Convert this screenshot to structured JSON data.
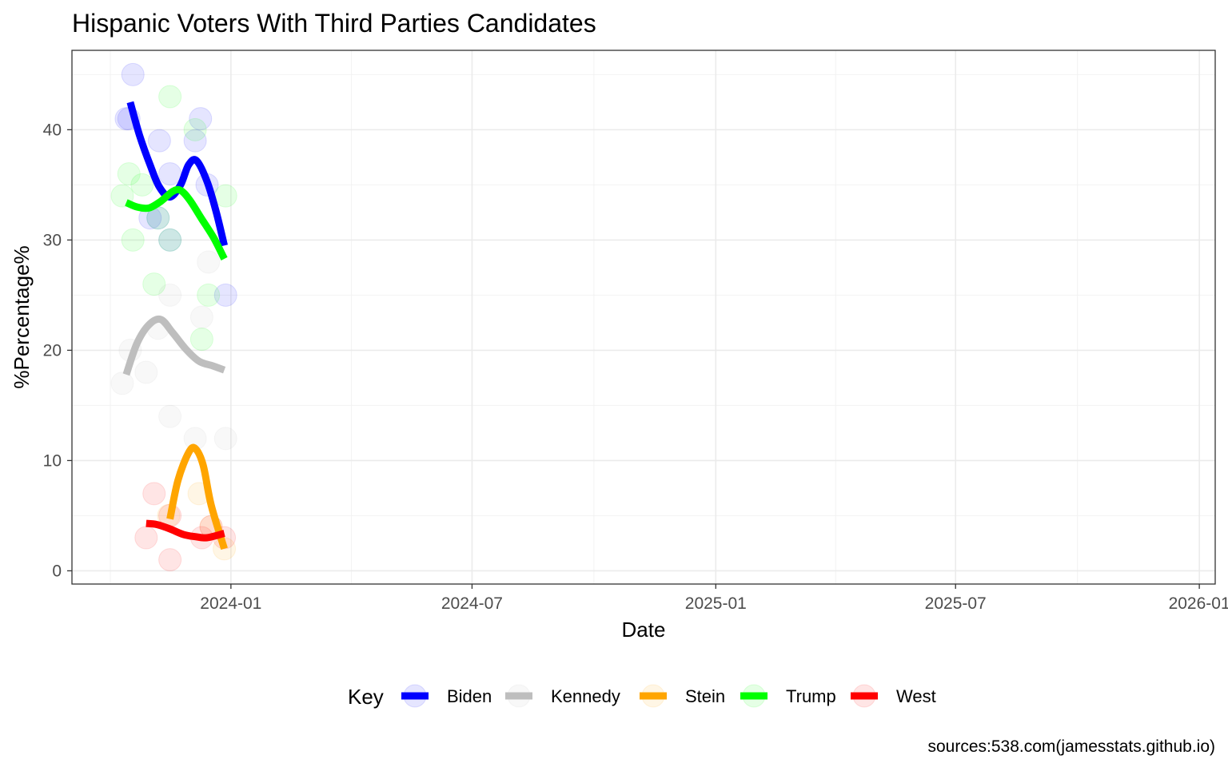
{
  "chart_data": {
    "type": "scatter",
    "title": "Hispanic Voters With Third Parties Candidates",
    "xlabel": "Date",
    "ylabel": "%Percentage%",
    "x_tick_labels": [
      "2024-01",
      "2024-07",
      "2025-01",
      "2025-07",
      "2026-01"
    ],
    "x_ticks": [
      "2024-01-01",
      "2024-07-01",
      "2025-01-01",
      "2025-07-01",
      "2026-01-01"
    ],
    "xlim": [
      "2023-09-03",
      "2026-01-13"
    ],
    "y_tick_labels": [
      "0",
      "10",
      "20",
      "30",
      "40"
    ],
    "y_ticks": [
      0,
      10,
      20,
      30,
      40
    ],
    "ylim": [
      -1.2,
      47.2
    ],
    "grid": true,
    "legend_title": "Key",
    "legend_position": "bottom",
    "caption": "sources:538.com(jamesstats.github.io)",
    "series": [
      {
        "name": "Biden",
        "color": "#0000ff",
        "points": [
          {
            "x": "2023-10-14",
            "y": 41
          },
          {
            "x": "2023-10-16",
            "y": 41
          },
          {
            "x": "2023-10-19",
            "y": 45
          },
          {
            "x": "2023-11-01",
            "y": 32
          },
          {
            "x": "2023-11-07",
            "y": 32
          },
          {
            "x": "2023-11-08",
            "y": 39
          },
          {
            "x": "2023-11-16",
            "y": 30
          },
          {
            "x": "2023-11-16",
            "y": 36
          },
          {
            "x": "2023-12-05",
            "y": 39
          },
          {
            "x": "2023-12-09",
            "y": 41
          },
          {
            "x": "2023-12-14",
            "y": 35
          },
          {
            "x": "2023-12-28",
            "y": 25
          }
        ],
        "trend": [
          {
            "x": "2023-10-17",
            "y": 42.5
          },
          {
            "x": "2023-10-24",
            "y": 39.5
          },
          {
            "x": "2023-11-01",
            "y": 36.8
          },
          {
            "x": "2023-11-08",
            "y": 34.8
          },
          {
            "x": "2023-11-16",
            "y": 33.9
          },
          {
            "x": "2023-11-24",
            "y": 35
          },
          {
            "x": "2023-11-30",
            "y": 36.8
          },
          {
            "x": "2023-12-06",
            "y": 37.2
          },
          {
            "x": "2023-12-14",
            "y": 35.3
          },
          {
            "x": "2023-12-21",
            "y": 32.5
          },
          {
            "x": "2023-12-27",
            "y": 29.5
          }
        ]
      },
      {
        "name": "Kennedy",
        "color": "#bebebe",
        "points": [
          {
            "x": "2023-10-11",
            "y": 17
          },
          {
            "x": "2023-10-17",
            "y": 20
          },
          {
            "x": "2023-10-29",
            "y": 18
          },
          {
            "x": "2023-11-07",
            "y": 22
          },
          {
            "x": "2023-11-16",
            "y": 14
          },
          {
            "x": "2023-11-16",
            "y": 25
          },
          {
            "x": "2023-12-05",
            "y": 12
          },
          {
            "x": "2023-12-10",
            "y": 23
          },
          {
            "x": "2023-12-15",
            "y": 28
          },
          {
            "x": "2023-12-28",
            "y": 12
          }
        ],
        "trend": [
          {
            "x": "2023-10-14",
            "y": 17.8
          },
          {
            "x": "2023-10-22",
            "y": 20.6
          },
          {
            "x": "2023-10-31",
            "y": 22.3
          },
          {
            "x": "2023-11-09",
            "y": 22.8
          },
          {
            "x": "2023-11-18",
            "y": 21.6
          },
          {
            "x": "2023-11-28",
            "y": 20.1
          },
          {
            "x": "2023-12-08",
            "y": 19
          },
          {
            "x": "2023-12-18",
            "y": 18.6
          },
          {
            "x": "2023-12-27",
            "y": 18.2
          }
        ]
      },
      {
        "name": "Stein",
        "color": "#ffa500",
        "points": [
          {
            "x": "2023-11-15",
            "y": 5
          },
          {
            "x": "2023-12-08",
            "y": 7
          },
          {
            "x": "2023-12-17",
            "y": 4
          },
          {
            "x": "2023-12-27",
            "y": 2
          }
        ],
        "trend": [
          {
            "x": "2023-11-16",
            "y": 4.7
          },
          {
            "x": "2023-11-22",
            "y": 8.2
          },
          {
            "x": "2023-11-30",
            "y": 10.7
          },
          {
            "x": "2023-12-05",
            "y": 11.1
          },
          {
            "x": "2023-12-11",
            "y": 9.6
          },
          {
            "x": "2023-12-17",
            "y": 6
          },
          {
            "x": "2023-12-27",
            "y": 2
          }
        ]
      },
      {
        "name": "Trump",
        "color": "#00ff00",
        "points": [
          {
            "x": "2023-10-11",
            "y": 34
          },
          {
            "x": "2023-10-16",
            "y": 36
          },
          {
            "x": "2023-10-19",
            "y": 30
          },
          {
            "x": "2023-10-26",
            "y": 35
          },
          {
            "x": "2023-11-04",
            "y": 26
          },
          {
            "x": "2023-11-07",
            "y": 32
          },
          {
            "x": "2023-11-16",
            "y": 43
          },
          {
            "x": "2023-11-16",
            "y": 30
          },
          {
            "x": "2023-12-05",
            "y": 40
          },
          {
            "x": "2023-12-10",
            "y": 21
          },
          {
            "x": "2023-12-15",
            "y": 25
          },
          {
            "x": "2023-12-28",
            "y": 34
          }
        ],
        "trend": [
          {
            "x": "2023-10-14",
            "y": 33.4
          },
          {
            "x": "2023-10-22",
            "y": 33
          },
          {
            "x": "2023-10-31",
            "y": 32.9
          },
          {
            "x": "2023-11-09",
            "y": 33.5
          },
          {
            "x": "2023-11-18",
            "y": 34.4
          },
          {
            "x": "2023-11-24",
            "y": 34.5
          },
          {
            "x": "2023-12-01",
            "y": 33.6
          },
          {
            "x": "2023-12-10",
            "y": 31.9
          },
          {
            "x": "2023-12-19",
            "y": 30.2
          },
          {
            "x": "2023-12-27",
            "y": 28.3
          }
        ]
      },
      {
        "name": "West",
        "color": "#ff0000",
        "points": [
          {
            "x": "2023-10-29",
            "y": 3
          },
          {
            "x": "2023-11-04",
            "y": 7
          },
          {
            "x": "2023-11-16",
            "y": 1
          },
          {
            "x": "2023-11-16",
            "y": 5
          },
          {
            "x": "2023-12-10",
            "y": 3
          },
          {
            "x": "2023-12-17",
            "y": 4
          },
          {
            "x": "2023-12-27",
            "y": 3
          }
        ],
        "trend": [
          {
            "x": "2023-10-29",
            "y": 4.3
          },
          {
            "x": "2023-11-06",
            "y": 4.2
          },
          {
            "x": "2023-11-16",
            "y": 3.8
          },
          {
            "x": "2023-11-26",
            "y": 3.3
          },
          {
            "x": "2023-12-05",
            "y": 3.1
          },
          {
            "x": "2023-12-14",
            "y": 3
          },
          {
            "x": "2023-12-27",
            "y": 3.4
          }
        ]
      }
    ]
  }
}
